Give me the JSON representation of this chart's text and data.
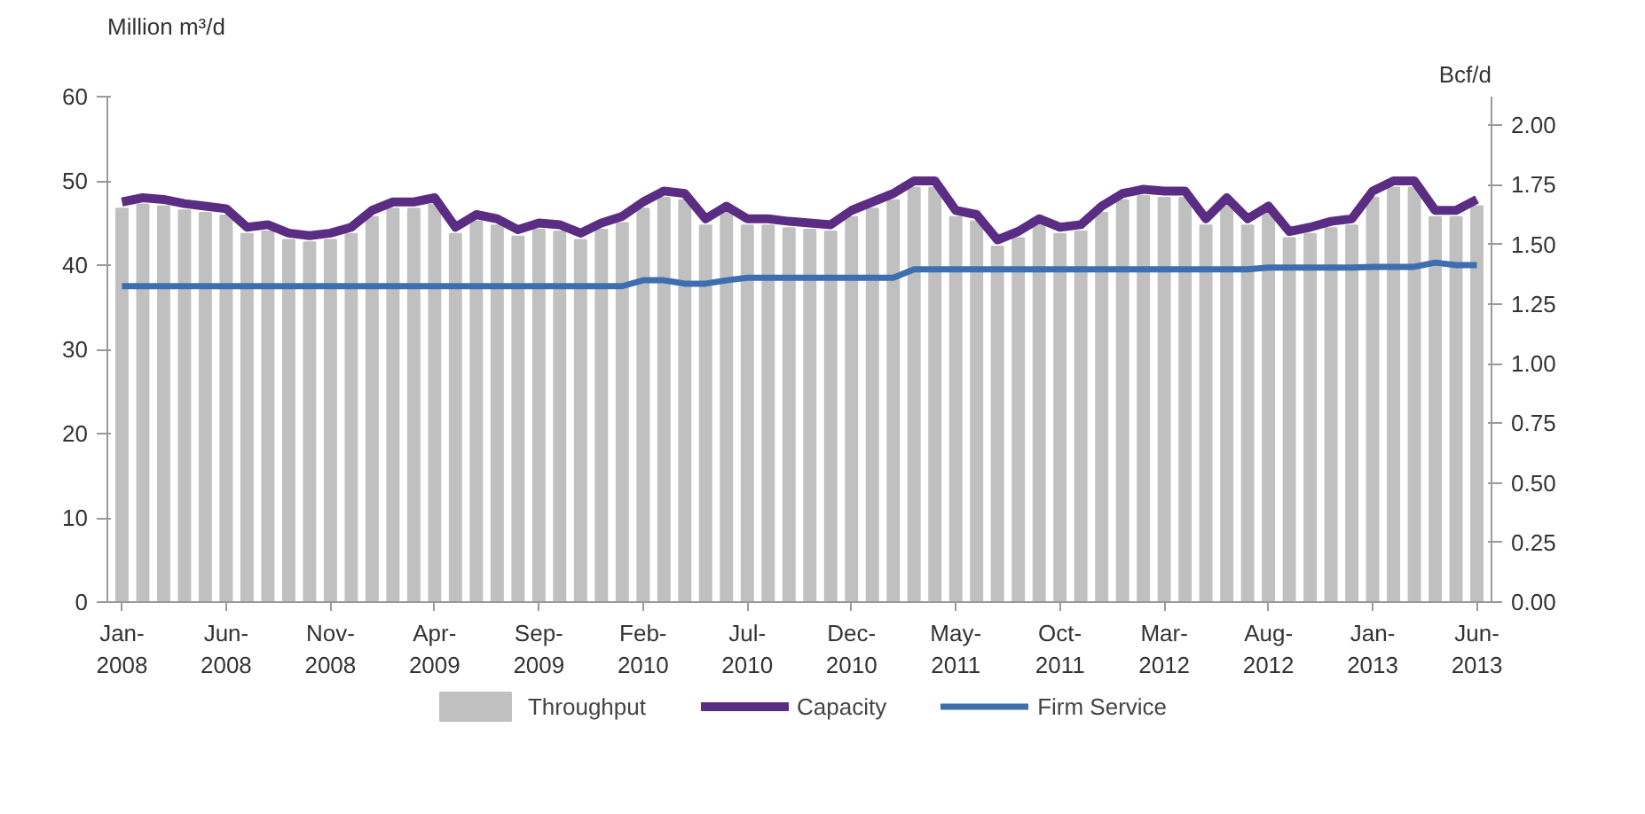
{
  "chart_data": {
    "type": "bar",
    "ylabel": "Million m³/d",
    "y2label": "Bcf/d",
    "categories": [
      "Jan-\n2008",
      null,
      null,
      null,
      null,
      "Jun-\n2008",
      null,
      null,
      null,
      null,
      "Nov-\n2008",
      null,
      null,
      null,
      null,
      "Apr-\n2009",
      null,
      null,
      null,
      null,
      "Sep-\n2009",
      null,
      null,
      null,
      null,
      "Feb-\n2010",
      null,
      null,
      null,
      null,
      "Jul-\n2010",
      null,
      null,
      null,
      null,
      "Dec-\n2010",
      null,
      null,
      null,
      null,
      "May-\n2011",
      null,
      null,
      null,
      null,
      "Oct-\n2011",
      null,
      null,
      null,
      null,
      "Mar-\n2012",
      null,
      null,
      null,
      null,
      "Aug-\n2012",
      null,
      null,
      null,
      null,
      "Jan-\n2013",
      null,
      null,
      null,
      null,
      "Jun-\n2013"
    ],
    "series": [
      {
        "name": "Throughput",
        "color": "#c0c0c0",
        "values": [
          46.7,
          47.2,
          47,
          46.5,
          46.2,
          45.9,
          43.7,
          44,
          43,
          42.7,
          43,
          43.7,
          45.7,
          46.7,
          46.7,
          47.2,
          43.7,
          45.2,
          44.7,
          43.4,
          44.2,
          44,
          43,
          44.2,
          45,
          46.7,
          48,
          47.7,
          44.7,
          46.2,
          44.7,
          44.7,
          44.4,
          44.2,
          44,
          45.7,
          46.7,
          47.7,
          49.2,
          49.2,
          45.7,
          45.2,
          42.2,
          43.2,
          44.7,
          43.7,
          44,
          46.2,
          47.7,
          48.2,
          48,
          48,
          44.7,
          47.2,
          44.7,
          46.2,
          43.2,
          43.7,
          44.4,
          44.7,
          48,
          49.2,
          49.2,
          45.7,
          45.7,
          47
        ]
      },
      {
        "name": "Capacity",
        "type": "line",
        "color": "#5b2c83",
        "values": [
          47.5,
          48,
          47.8,
          47.3,
          47,
          46.7,
          44.5,
          44.8,
          43.8,
          43.5,
          43.8,
          44.5,
          46.5,
          47.5,
          47.5,
          48,
          44.5,
          46,
          45.5,
          44.2,
          45,
          44.8,
          43.8,
          45,
          45.8,
          47.5,
          48.8,
          48.5,
          45.5,
          47,
          45.5,
          45.5,
          45.2,
          45,
          44.8,
          46.5,
          47.5,
          48.5,
          50,
          50,
          46.5,
          46,
          43,
          44,
          45.5,
          44.5,
          44.8,
          47,
          48.5,
          49,
          48.8,
          48.8,
          45.5,
          48,
          45.5,
          47,
          44,
          44.5,
          45.2,
          45.5,
          48.8,
          50,
          50,
          46.5,
          46.5,
          47.8
        ]
      },
      {
        "name": "Firm Service",
        "type": "line",
        "color": "#3d6fb0",
        "values": [
          37.5,
          37.5,
          37.5,
          37.5,
          37.5,
          37.5,
          37.5,
          37.5,
          37.5,
          37.5,
          37.5,
          37.5,
          37.5,
          37.5,
          37.5,
          37.5,
          37.5,
          37.5,
          37.5,
          37.5,
          37.5,
          37.5,
          37.5,
          37.5,
          37.5,
          38.2,
          38.2,
          37.8,
          37.8,
          38.2,
          38.5,
          38.5,
          38.5,
          38.5,
          38.5,
          38.5,
          38.5,
          38.5,
          39.5,
          39.5,
          39.5,
          39.5,
          39.5,
          39.5,
          39.5,
          39.5,
          39.5,
          39.5,
          39.5,
          39.5,
          39.5,
          39.5,
          39.5,
          39.5,
          39.5,
          39.7,
          39.7,
          39.7,
          39.7,
          39.7,
          39.8,
          39.8,
          39.8,
          40.3,
          40,
          40
        ]
      }
    ],
    "ylim": [
      0,
      60
    ],
    "yticks": [
      0,
      10,
      20,
      30,
      40,
      50,
      60
    ],
    "y2lim": [
      0,
      2.119
    ],
    "y2ticks": [
      {
        "value": 0,
        "label": "0.00"
      },
      {
        "value": 0.25,
        "label": "0.25"
      },
      {
        "value": 0.5,
        "label": "0.50"
      },
      {
        "value": 0.75,
        "label": "0.75"
      },
      {
        "value": 1,
        "label": "1.00"
      },
      {
        "value": 1.25,
        "label": "1.25"
      },
      {
        "value": 1.5,
        "label": "1.50"
      },
      {
        "value": 1.75,
        "label": "1.75"
      },
      {
        "value": 2,
        "label": "2.00"
      }
    ],
    "grid": false,
    "legend": "bottom"
  }
}
